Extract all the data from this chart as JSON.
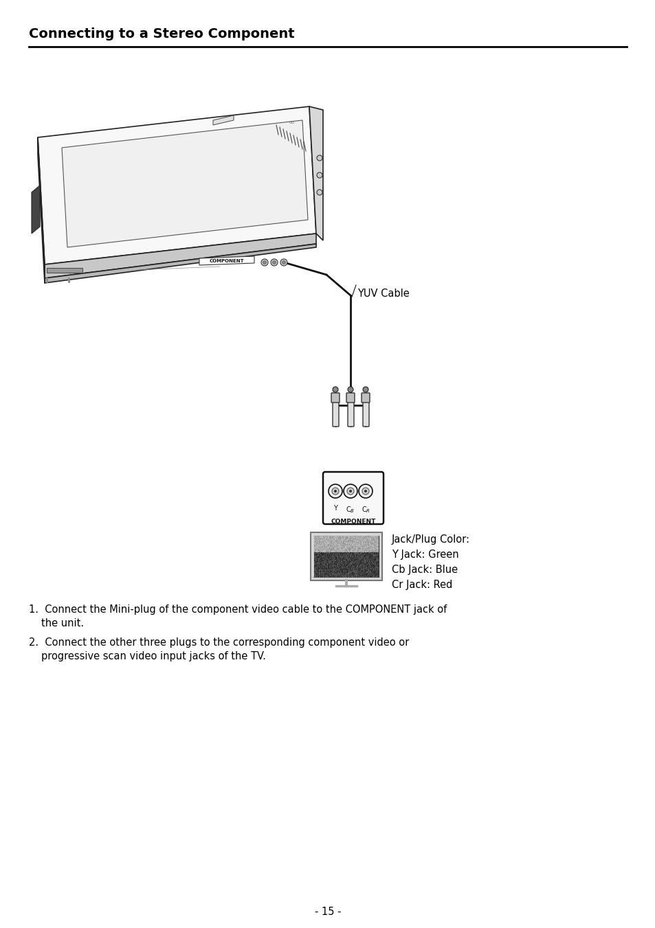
{
  "title": "Connecting to a Stereo Component",
  "background_color": "#ffffff",
  "page_number": "- 15 -",
  "yuv_cable_label": "YUV Cable",
  "jack_info": [
    "Jack/Plug Color:",
    "Y Jack: Green",
    "Cb Jack: Blue",
    "Cr Jack: Red"
  ],
  "instr1_line1": "1.  Connect the Mini-plug of the component video cable to the COMPONENT jack of",
  "instr1_line2": "    the unit.",
  "instr2_line1": "2.  Connect the other three plugs to the corresponding component video or",
  "instr2_line2": "    progressive scan video input jacks of the TV.",
  "component_label": "COMPONENT",
  "title_fontsize": 14,
  "body_fontsize": 10.5,
  "label_fontsize": 7
}
